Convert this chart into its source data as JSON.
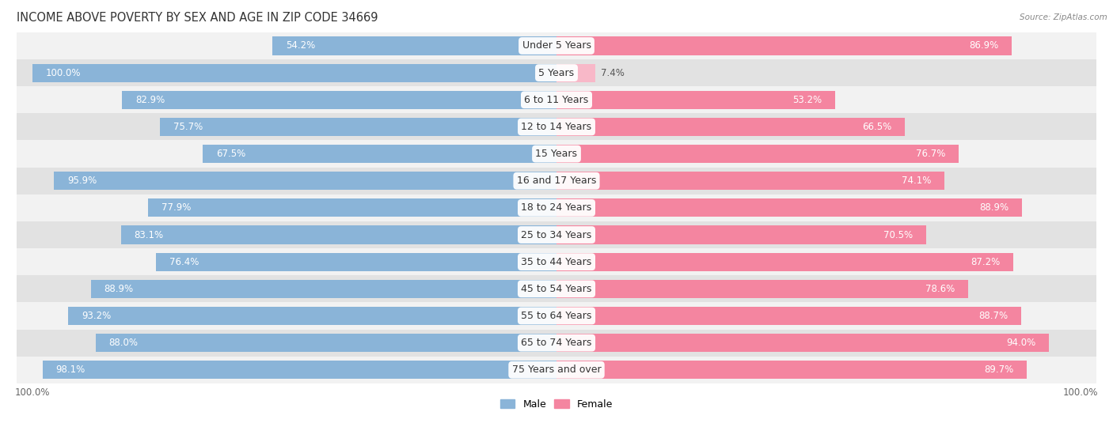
{
  "title": "INCOME ABOVE POVERTY BY SEX AND AGE IN ZIP CODE 34669",
  "source": "Source: ZipAtlas.com",
  "categories": [
    "Under 5 Years",
    "5 Years",
    "6 to 11 Years",
    "12 to 14 Years",
    "15 Years",
    "16 and 17 Years",
    "18 to 24 Years",
    "25 to 34 Years",
    "35 to 44 Years",
    "45 to 54 Years",
    "55 to 64 Years",
    "65 to 74 Years",
    "75 Years and over"
  ],
  "male_values": [
    54.2,
    100.0,
    82.9,
    75.7,
    67.5,
    95.9,
    77.9,
    83.1,
    76.4,
    88.9,
    93.2,
    88.0,
    98.1
  ],
  "female_values": [
    86.9,
    7.4,
    53.2,
    66.5,
    76.7,
    74.1,
    88.9,
    70.5,
    87.2,
    78.6,
    88.7,
    94.0,
    89.7
  ],
  "male_color": "#8ab4d8",
  "female_color": "#f485a0",
  "male_color_light": "#b8d3e8",
  "female_color_light": "#f8b8c8",
  "male_label": "Male",
  "female_label": "Female",
  "row_bg_odd": "#f2f2f2",
  "row_bg_even": "#e2e2e2",
  "axis_max": 100.0,
  "title_fontsize": 10.5,
  "label_fontsize": 9,
  "bar_height": 0.68,
  "value_fontsize": 8.5,
  "x_label_fontsize": 8.5
}
